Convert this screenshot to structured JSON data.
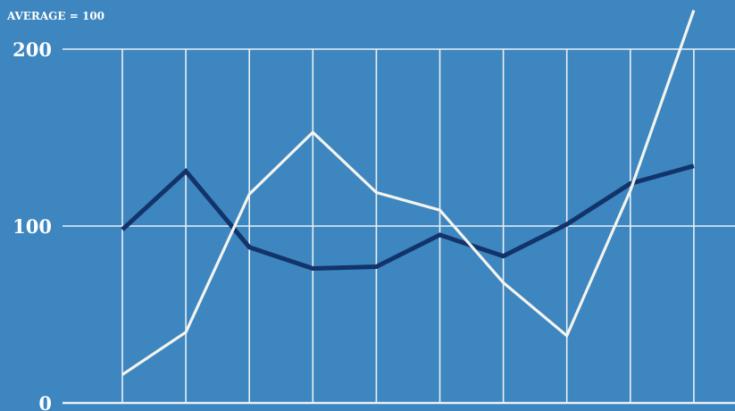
{
  "chart_data": {
    "type": "line",
    "ylabel": "AVERAGE = 100",
    "ylim": [
      0,
      200
    ],
    "yticks": [
      0,
      100,
      200
    ],
    "x": [
      1,
      2,
      3,
      4,
      5,
      6,
      7,
      8,
      9,
      10
    ],
    "grid": true,
    "series": [
      {
        "values": [
          98,
          131,
          88,
          76,
          77,
          95,
          83,
          101,
          124,
          134
        ],
        "color": "#13336b"
      },
      {
        "values": [
          16,
          40,
          118,
          153,
          119,
          109,
          68,
          38,
          120,
          222
        ],
        "color": "#f4f4ee"
      }
    ],
    "colors": {
      "background": "#3d86bf",
      "grid": "#e9f0f6"
    }
  }
}
